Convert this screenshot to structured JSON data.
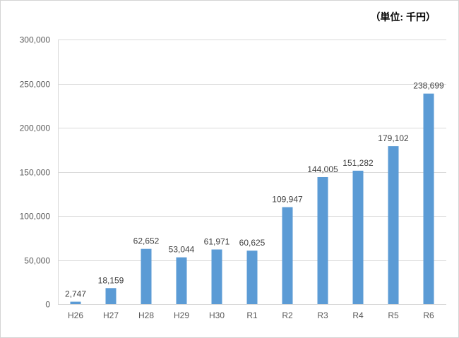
{
  "unit_label": "（単位: 千円）",
  "colors": {
    "bar": "#5b9bd5",
    "grid": "#d9d9d9",
    "axis_text": "#595959",
    "label_text": "#404040"
  },
  "chart_data": {
    "type": "bar",
    "title": "",
    "xlabel": "",
    "ylabel": "",
    "categories": [
      "H26",
      "H27",
      "H28",
      "H29",
      "H30",
      "R1",
      "R2",
      "R3",
      "R4",
      "R5",
      "R6"
    ],
    "values": [
      2747,
      18159,
      62652,
      53044,
      61971,
      60625,
      109947,
      144005,
      151282,
      179102,
      238699
    ],
    "data_labels": [
      "2,747",
      "18,159",
      "62,652",
      "53,044",
      "61,971",
      "60,625",
      "109,947",
      "144,005",
      "151,282",
      "179,102",
      "238,699"
    ],
    "ylim": [
      0,
      300000
    ],
    "yticks": [
      0,
      50000,
      100000,
      150000,
      200000,
      250000,
      300000
    ],
    "ytick_labels": [
      "0",
      "50,000",
      "100,000",
      "150,000",
      "200,000",
      "250,000",
      "300,000"
    ],
    "grid": true,
    "legend": "none"
  }
}
